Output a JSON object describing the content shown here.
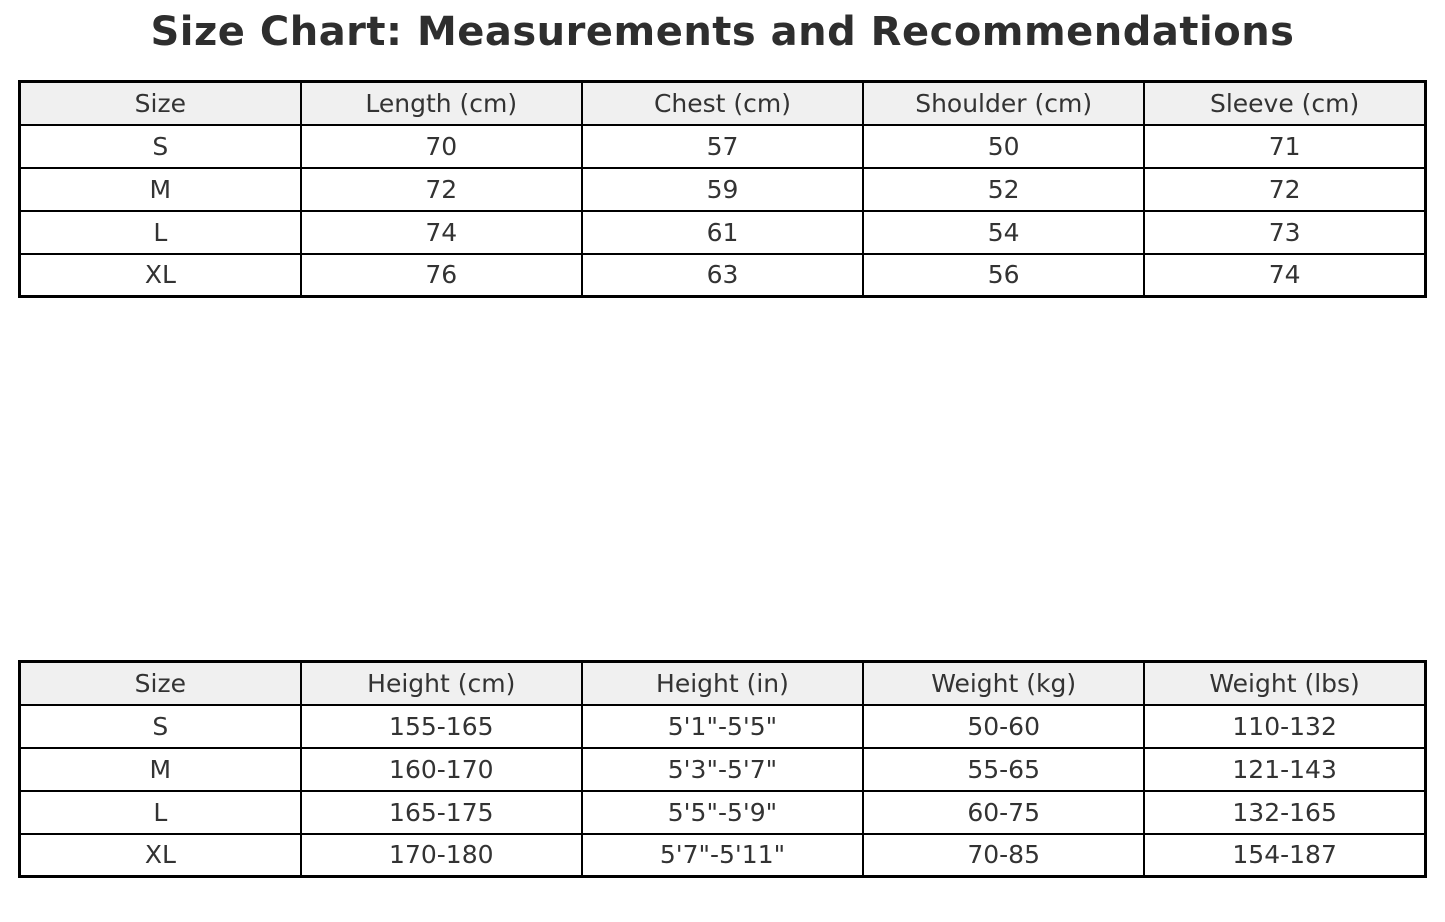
{
  "title": "Size Chart: Measurements and Recommendations",
  "colors": {
    "background": "#ffffff",
    "title_text": "#2e2e2e",
    "cell_text": "#333333",
    "header_background": "#f0f0f0",
    "border": "#000000"
  },
  "chart_data": [
    {
      "type": "table",
      "name": "garment-measurements",
      "columns": [
        "Size",
        "Length (cm)",
        "Chest (cm)",
        "Shoulder (cm)",
        "Sleeve (cm)"
      ],
      "rows": [
        [
          "S",
          "70",
          "57",
          "50",
          "71"
        ],
        [
          "M",
          "72",
          "59",
          "52",
          "72"
        ],
        [
          "L",
          "74",
          "61",
          "54",
          "73"
        ],
        [
          "XL",
          "76",
          "63",
          "56",
          "74"
        ]
      ]
    },
    {
      "type": "table",
      "name": "body-recommendations",
      "columns": [
        "Size",
        "Height (cm)",
        "Height (in)",
        "Weight (kg)",
        "Weight (lbs)"
      ],
      "rows": [
        [
          "S",
          "155-165",
          "5'1\"-5'5\"",
          "50-60",
          "110-132"
        ],
        [
          "M",
          "160-170",
          "5'3\"-5'7\"",
          "55-65",
          "121-143"
        ],
        [
          "L",
          "165-175",
          "5'5\"-5'9\"",
          "60-75",
          "132-165"
        ],
        [
          "XL",
          "170-180",
          "5'7\"-5'11\"",
          "70-85",
          "154-187"
        ]
      ]
    }
  ]
}
